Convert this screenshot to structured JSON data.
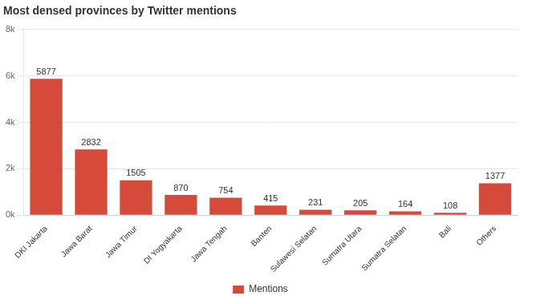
{
  "chart_data": {
    "type": "bar",
    "title": "Most densed provinces by Twitter mentions",
    "categories": [
      "DKI Jakarta",
      "Jawa Barat",
      "Jawa Timur",
      "DI Yogyakarta",
      "Jawa Tengah",
      "Banten",
      "Sulawesi Selatan",
      "Sumatra Utara",
      "Sumatra Selatan",
      "Bali",
      "Others"
    ],
    "series": [
      {
        "name": "Mentions",
        "color": "#d64a3a",
        "values": [
          5877,
          2832,
          1505,
          870,
          754,
          415,
          231,
          205,
          164,
          108,
          1377
        ]
      }
    ],
    "ylim": [
      0,
      8000
    ],
    "yticks": [
      {
        "value": 0,
        "label": "0k"
      },
      {
        "value": 2000,
        "label": "2k"
      },
      {
        "value": 4000,
        "label": "4k"
      },
      {
        "value": 6000,
        "label": "6k"
      },
      {
        "value": 8000,
        "label": "8k"
      }
    ],
    "grid": true,
    "legend": "bottom",
    "data_labels": true
  }
}
